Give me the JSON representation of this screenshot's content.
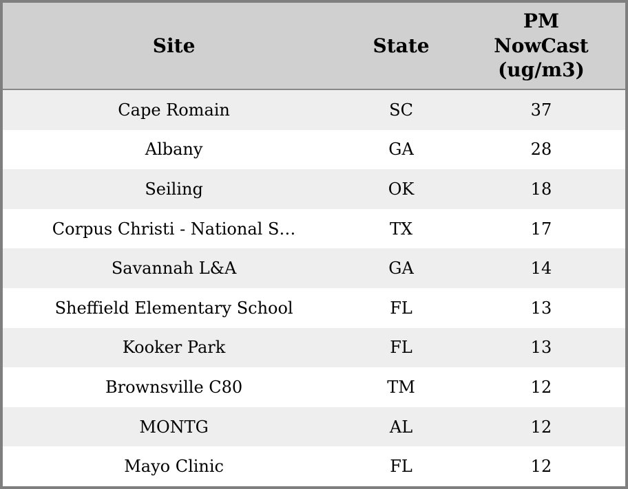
{
  "chart_data": {
    "type": "table",
    "columns": [
      "Site",
      "State",
      "PM NowCast (ug/m3)"
    ],
    "rows": [
      [
        "Cape Romain",
        "SC",
        37
      ],
      [
        "Albany",
        "GA",
        28
      ],
      [
        "Seiling",
        "OK",
        18
      ],
      [
        "Corpus Christi - National S…",
        "TX",
        17
      ],
      [
        "Savannah L&A",
        "GA",
        14
      ],
      [
        "Sheffield Elementary School",
        "FL",
        13
      ],
      [
        "Kooker Park",
        "FL",
        13
      ],
      [
        "Brownsville C80",
        "TM",
        12
      ],
      [
        "MONTG",
        "AL",
        12
      ],
      [
        "Mayo Clinic",
        "FL",
        12
      ]
    ],
    "layout": {
      "header_rows": 1,
      "row_striping": "alternating",
      "column_alignment": [
        "center",
        "center",
        "center"
      ]
    }
  },
  "colors": {
    "outer_border": "#7f7f7f",
    "header_bg": "#d0d0d0",
    "header_divider": "#888888",
    "row_stripe_bg": "#eeeeee",
    "row_bg": "#ffffff",
    "text": "#000000"
  }
}
